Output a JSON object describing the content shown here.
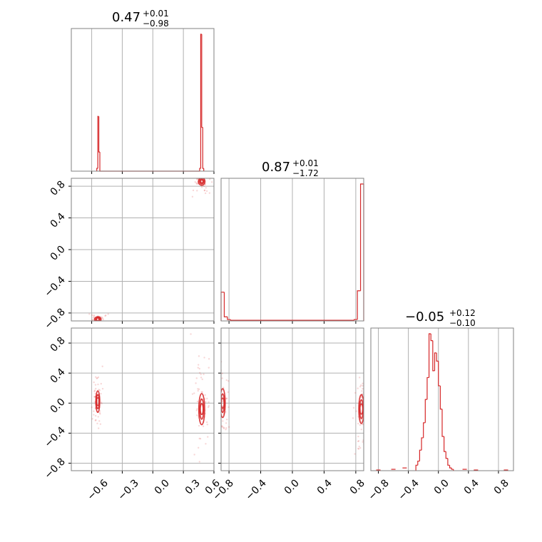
{
  "colors": {
    "series": "#d62728",
    "grid": "#b0b0b0",
    "frame": "#808080"
  },
  "chart_data": {
    "type": "corner",
    "grid": true,
    "tick_labels": {
      "x1": [
        "−0.6",
        "−0.3",
        "0.0",
        "0.3",
        "0.6"
      ],
      "x2": [
        "−0.8",
        "−0.4",
        "0.0",
        "0.4",
        "0.8"
      ],
      "x3": [
        "−0.8",
        "−0.4",
        "0.0",
        "0.4",
        "0.8"
      ],
      "y2": [
        "0.8",
        "0.4",
        "0.0",
        "−0.4",
        "−0.8"
      ],
      "y3": [
        "0.8",
        "0.4",
        "0.0",
        "−0.4",
        "−0.8"
      ]
    },
    "titles": [
      {
        "main": "0.47",
        "plus": "+0.01",
        "minus": "−0.98"
      },
      {
        "main": "0.87",
        "plus": "+0.01",
        "minus": "−1.72"
      },
      {
        "main": "−0.05",
        "plus": "+0.12",
        "minus": "−0.10"
      }
    ],
    "ranges": {
      "p1": [
        -0.8,
        0.6
      ],
      "p2": [
        -0.9,
        0.9
      ],
      "p3": [
        -0.9,
        1.0
      ]
    },
    "hist1": {
      "type": "histogram",
      "edges": [
        -0.55,
        -0.54,
        -0.53,
        -0.52,
        -0.51,
        0.46,
        0.47,
        0.48,
        0.49,
        0.5
      ],
      "counts": [
        0.02,
        0.4,
        0.14,
        0.0,
        0.0,
        0.02,
        1.0,
        0.32,
        0.02
      ]
    },
    "hist2": {
      "type": "histogram",
      "edges": [
        -0.9,
        -0.86,
        -0.82,
        -0.78,
        0.78,
        0.82,
        0.86,
        0.9
      ],
      "counts": [
        0.21,
        0.03,
        0.01,
        0.005,
        0.01,
        0.22,
        1.0
      ]
    },
    "hist3": {
      "type": "histogram",
      "edges": [
        -0.3,
        -0.275,
        -0.25,
        -0.225,
        -0.2,
        -0.175,
        -0.15,
        -0.125,
        -0.1,
        -0.075,
        -0.05,
        -0.025,
        0.0,
        0.025,
        0.05,
        0.075,
        0.1,
        0.125,
        0.15,
        0.175,
        0.2
      ],
      "counts": [
        0.04,
        0.07,
        0.15,
        0.24,
        0.35,
        0.52,
        0.68,
        1.0,
        0.95,
        0.73,
        0.86,
        0.8,
        0.62,
        0.45,
        0.25,
        0.14,
        0.09,
        0.04,
        0.02,
        0.01
      ],
      "tail_left": [
        [
          -0.8,
          0.005
        ],
        [
          -0.6,
          0.01
        ],
        [
          -0.45,
          0.02
        ]
      ],
      "tail_right": [
        [
          0.35,
          0.01
        ],
        [
          0.5,
          0.005
        ],
        [
          0.9,
          0.005
        ]
      ]
    },
    "contours": [
      {
        "panel": "p2_vs_p1",
        "center": [
          0.48,
          0.86
        ],
        "spread": [
          0.02,
          0.03
        ]
      },
      {
        "panel": "p2_vs_p1",
        "center": [
          -0.54,
          -0.88
        ],
        "spread": [
          0.02,
          0.02
        ]
      },
      {
        "panel": "p3_vs_p1",
        "center": [
          -0.54,
          0.02
        ],
        "spread": [
          0.012,
          0.09
        ]
      },
      {
        "panel": "p3_vs_p1",
        "center": [
          0.48,
          -0.08
        ],
        "spread": [
          0.018,
          0.13
        ]
      },
      {
        "panel": "p3_vs_p2",
        "center": [
          -0.88,
          0.0
        ],
        "spread": [
          0.02,
          0.12
        ]
      },
      {
        "panel": "p3_vs_p2",
        "center": [
          0.87,
          -0.08
        ],
        "spread": [
          0.02,
          0.12
        ]
      }
    ]
  }
}
